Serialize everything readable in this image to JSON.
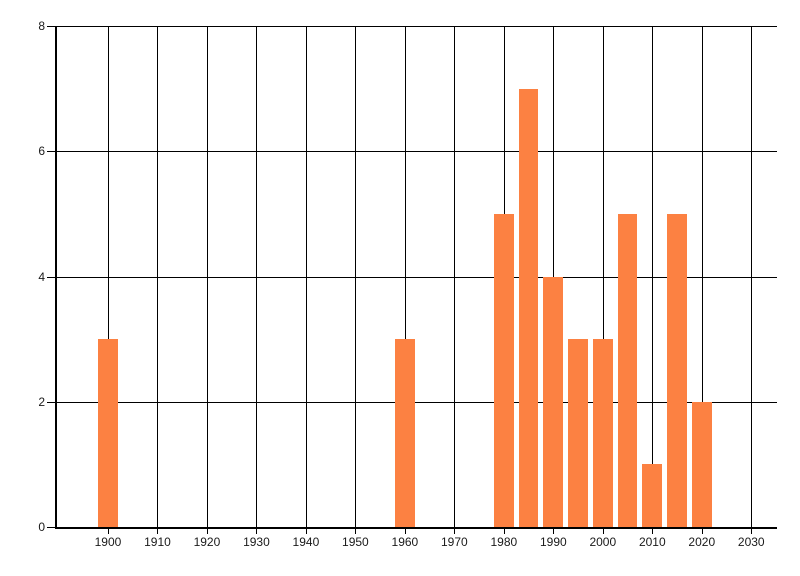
{
  "chart_data": {
    "type": "bar",
    "title": "",
    "xlabel": "",
    "ylabel": "",
    "categories": [
      1900,
      1960,
      1980,
      1985,
      1990,
      1995,
      2000,
      2005,
      2010,
      2015,
      2020
    ],
    "values": [
      3,
      3,
      5,
      7,
      4,
      3,
      3,
      5,
      1,
      5,
      2
    ],
    "bar_width_years": 4,
    "x_ticks": [
      1900,
      1910,
      1920,
      1930,
      1940,
      1950,
      1960,
      1970,
      1980,
      1990,
      2000,
      2010,
      2020,
      2030
    ],
    "y_ticks": [
      0,
      2,
      4,
      6,
      8
    ],
    "xlim": [
      1889.7,
      2035.2
    ],
    "ylim": [
      0,
      8
    ],
    "grid": "on",
    "legend": "none",
    "colors": {
      "bar": "#fc8142",
      "grid": "#000000",
      "axis": "#000000",
      "tick_label": "#1a1a1a",
      "background": "#ffffff"
    }
  }
}
